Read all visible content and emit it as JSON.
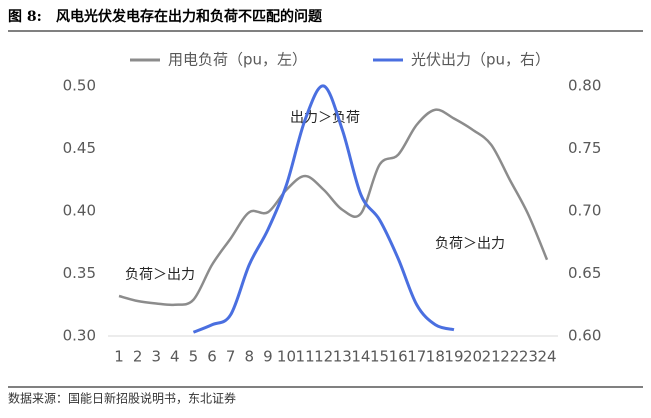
{
  "figure_label": "图 8:",
  "source": "数据来源：国能日新招股说明书，东北证券",
  "chart_data": {
    "type": "line",
    "title": "风电光伏发电存在出力和负荷不匹配的问题",
    "categories": [
      "1",
      "2",
      "3",
      "4",
      "5",
      "6",
      "7",
      "8",
      "9",
      "10",
      "11",
      "12",
      "13",
      "14",
      "15",
      "16",
      "17",
      "18",
      "19",
      "20",
      "21",
      "22",
      "23",
      "24"
    ],
    "series": [
      {
        "name": "用电负荷（pu，左）",
        "color": "#8c8c8c",
        "axis": "y",
        "values": [
          0.332,
          0.328,
          0.326,
          0.325,
          0.329,
          0.357,
          0.378,
          0.399,
          0.399,
          0.417,
          0.428,
          0.417,
          0.401,
          0.398,
          0.437,
          0.445,
          0.469,
          0.481,
          0.474,
          0.465,
          0.453,
          0.425,
          0.397,
          0.361
        ]
      },
      {
        "name": "光伏出力（pu，右）",
        "color": "#4a6fe0",
        "axis": "y2",
        "values": [
          null,
          null,
          null,
          null,
          0.603,
          0.609,
          0.617,
          0.657,
          0.685,
          0.721,
          0.773,
          0.8,
          0.765,
          0.713,
          0.693,
          0.662,
          0.625,
          0.609,
          0.605,
          null,
          null,
          null,
          null,
          null
        ]
      }
    ],
    "ylim": [
      0.3,
      0.5
    ],
    "yticks": [
      {
        "value": 0.3,
        "label": "0.30"
      },
      {
        "value": 0.35,
        "label": "0.35"
      },
      {
        "value": 0.4,
        "label": "0.40"
      },
      {
        "value": 0.45,
        "label": "0.45"
      },
      {
        "value": 0.5,
        "label": "0.50"
      }
    ],
    "y2lim": [
      0.6,
      0.8
    ],
    "y2ticks": [
      {
        "value": 0.6,
        "label": "0.60"
      },
      {
        "value": 0.65,
        "label": "0.65"
      },
      {
        "value": 0.7,
        "label": "0.70"
      },
      {
        "value": 0.75,
        "label": "0.75"
      },
      {
        "value": 0.8,
        "label": "0.80"
      }
    ],
    "annotations": [
      "出力＞负荷",
      "负荷＞出力",
      "负荷＞出力"
    ],
    "legend": "top"
  }
}
